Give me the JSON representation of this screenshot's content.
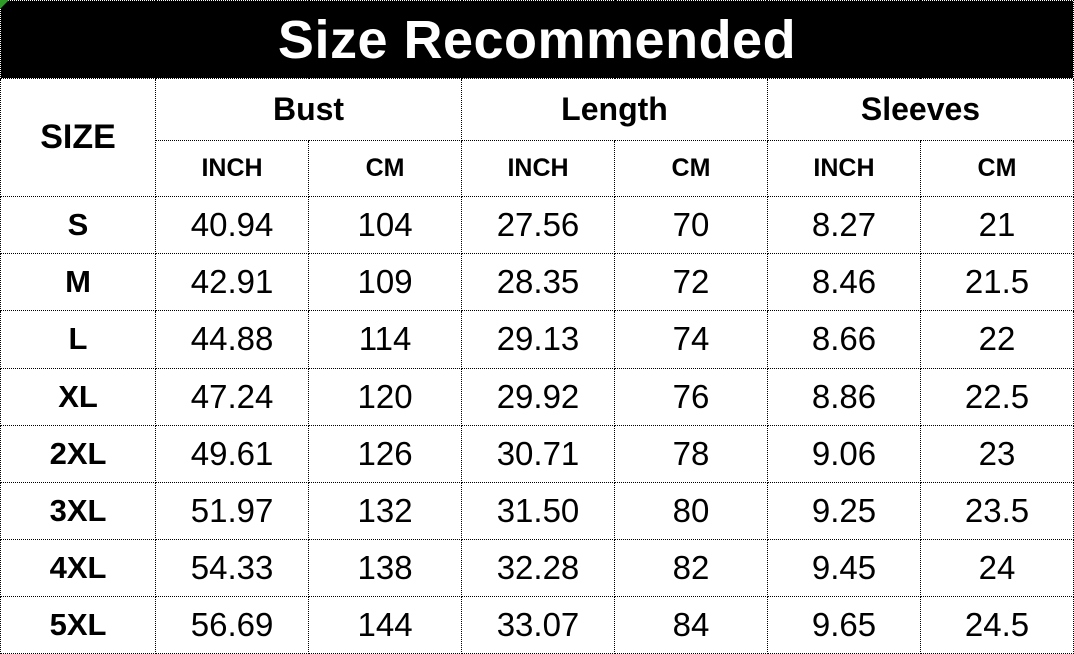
{
  "title": "Size Recommended",
  "table": {
    "size_header": "SIZE",
    "groups": [
      {
        "label": "Bust"
      },
      {
        "label": "Length"
      },
      {
        "label": "Sleeves"
      }
    ],
    "unit_headers": [
      "INCH",
      "CM",
      "INCH",
      "CM",
      "INCH",
      "CM"
    ],
    "rows": [
      {
        "size": "S",
        "values": [
          "40.94",
          "104",
          "27.56",
          "70",
          "8.27",
          "21"
        ]
      },
      {
        "size": "M",
        "values": [
          "42.91",
          "109",
          "28.35",
          "72",
          "8.46",
          "21.5"
        ]
      },
      {
        "size": "L",
        "values": [
          "44.88",
          "114",
          "29.13",
          "74",
          "8.66",
          "22"
        ]
      },
      {
        "size": "XL",
        "values": [
          "47.24",
          "120",
          "29.92",
          "76",
          "8.86",
          "22.5"
        ]
      },
      {
        "size": "2XL",
        "values": [
          "49.61",
          "126",
          "30.71",
          "78",
          "9.06",
          "23"
        ]
      },
      {
        "size": "3XL",
        "values": [
          "51.97",
          "132",
          "31.50",
          "80",
          "9.25",
          "23.5"
        ]
      },
      {
        "size": "4XL",
        "values": [
          "54.33",
          "138",
          "32.28",
          "82",
          "9.45",
          "24"
        ]
      },
      {
        "size": "5XL",
        "values": [
          "56.69",
          "144",
          "33.07",
          "84",
          "9.65",
          "24.5"
        ]
      }
    ]
  },
  "colors": {
    "banner_background": "#000000",
    "banner_text": "#ffffff",
    "table_background": "#ffffff",
    "cell_text": "#000000",
    "border": "#000000",
    "corner_marker_green": "#2e9b27"
  }
}
